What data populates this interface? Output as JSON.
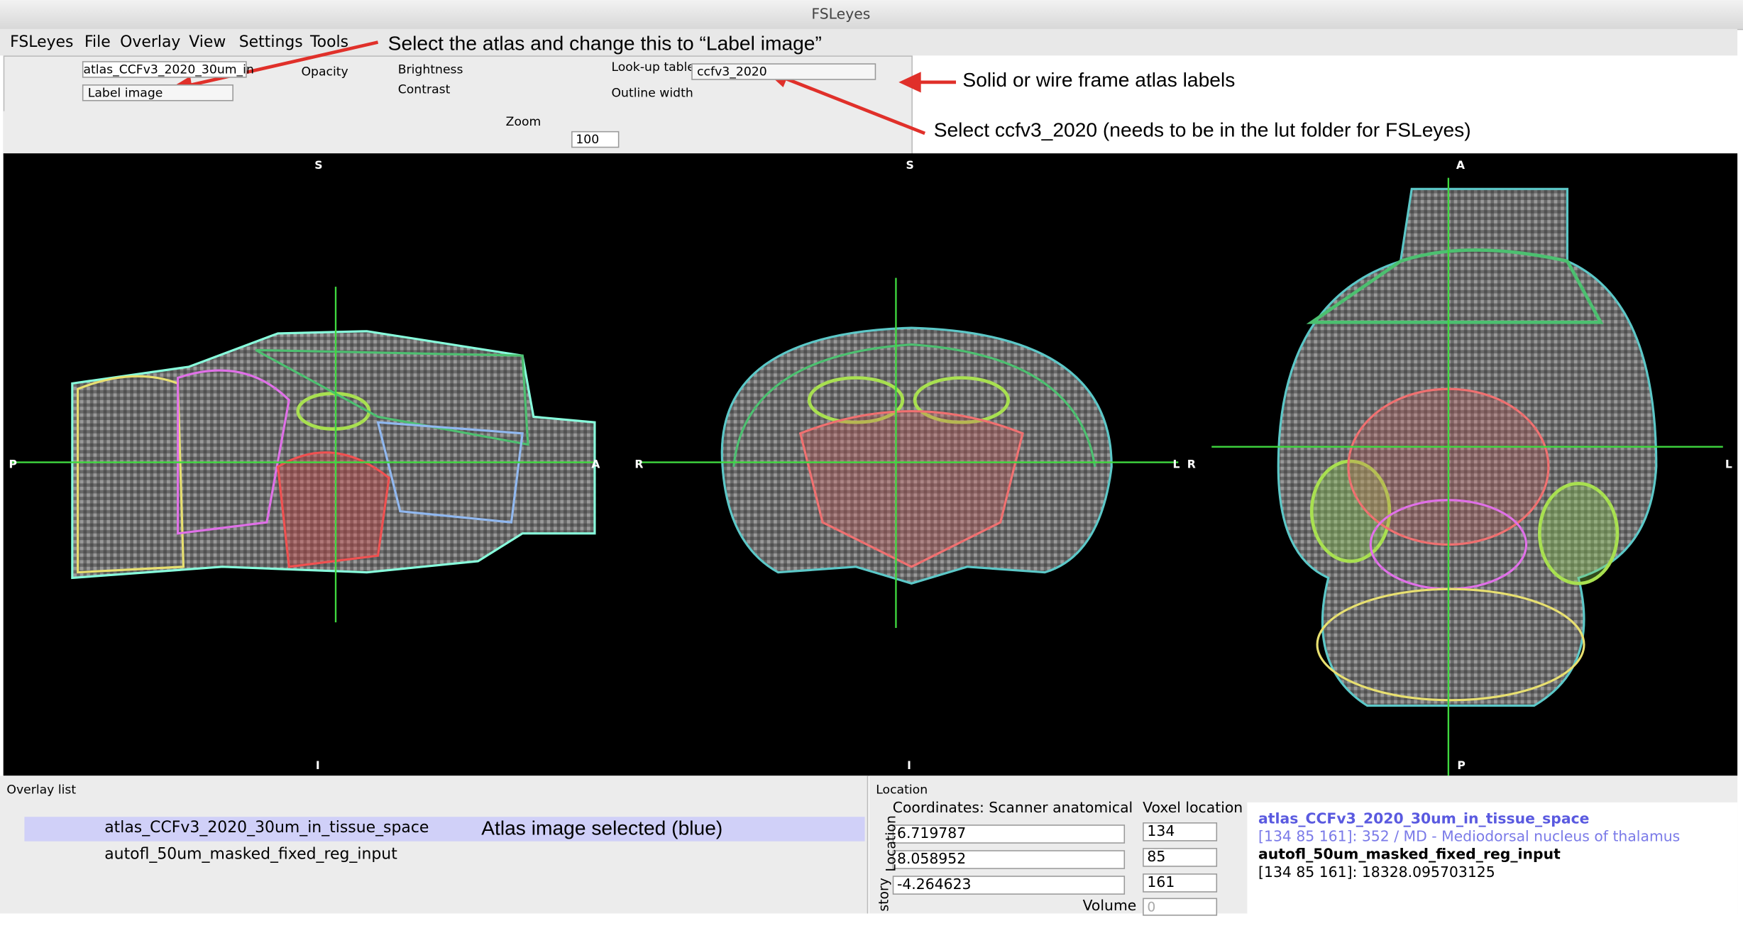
{
  "window": {
    "title": "FSLeyes"
  },
  "menu": [
    "FSLeyes",
    "File",
    "Overlay",
    "View",
    "Settings",
    "Tools"
  ],
  "toolbar": {
    "overlay_name": "atlas_CCFv3_2020_30um_in",
    "display_type": "Label image",
    "opacity": "Opacity",
    "brightness": "Brightness",
    "contrast": "Contrast",
    "lut_label": "Look-up table",
    "lut_value": "ccfv3_2020",
    "outline_width": "Outline width",
    "zoom_label": "Zoom",
    "zoom_value": "100"
  },
  "annotations": [
    "Select the atlas and change this to “Label image”",
    "Solid or wire frame atlas labels",
    "Select ccfv3_2020 (needs to be in the lut folder for FSLeyes)",
    "Atlas image selected (blue)"
  ],
  "views": [
    {
      "top": "S",
      "bottom": "I",
      "left": "P",
      "right": "A"
    },
    {
      "top": "S",
      "bottom": "I",
      "left": "R",
      "right": "L"
    },
    {
      "top": "A",
      "bottom": "P",
      "left": "R",
      "right": "L"
    }
  ],
  "overlay_list": {
    "title": "Overlay list",
    "items": [
      "atlas_CCFv3_2020_30um_in_tissue_space",
      "autofl_50um_masked_fixed_reg_input"
    ]
  },
  "location": {
    "title": "Location",
    "coord_label": "Coordinates: Scanner anatomical",
    "voxel_label": "Voxel location",
    "coords": [
      "6.719787",
      "8.058952",
      "-4.264623"
    ],
    "voxels": [
      "134",
      "85",
      "161"
    ],
    "volume_label": "Volume",
    "volume_value": "0",
    "side_tabs": [
      "Location",
      "story"
    ],
    "info": [
      "atlas_CCFv3_2020_30um_in_tissue_space",
      "[134 85 161]: 352 / MD - Mediodorsal nucleus of thalamus",
      "autofl_50um_masked_fixed_reg_input",
      "[134 85 161]: 18328.095703125"
    ]
  }
}
